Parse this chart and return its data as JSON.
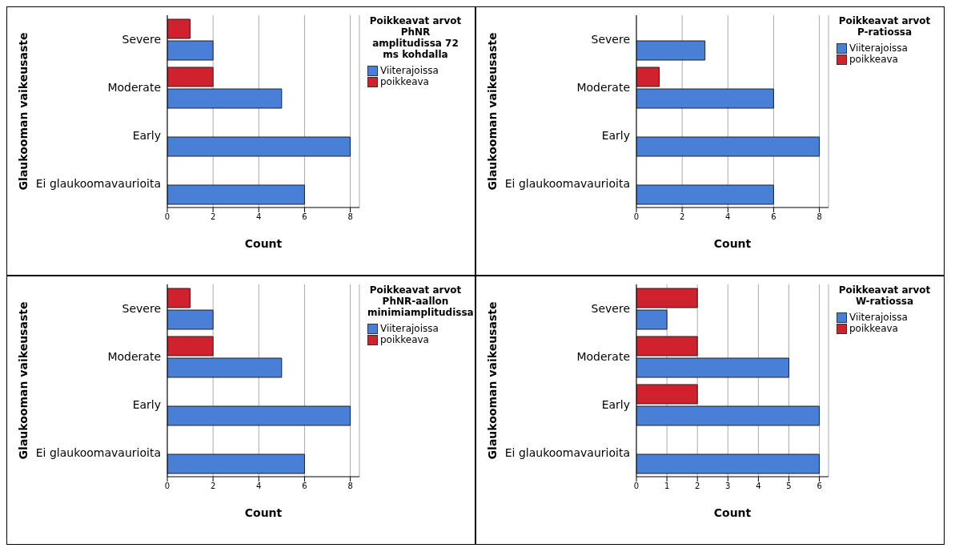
{
  "chart_data": [
    {
      "type": "bar",
      "orientation": "horizontal",
      "categories": [
        "Severe",
        "Moderate",
        "Early",
        "Ei glaukoomavaurioita"
      ],
      "series": [
        {
          "name": "Viiterajoissa",
          "color": "#4a7fd8",
          "values": [
            2,
            5,
            8,
            6
          ]
        },
        {
          "name": "poikkeava",
          "color": "#d0222e",
          "values": [
            1,
            2,
            0,
            0
          ]
        }
      ],
      "xlabel": "Count",
      "ylabel": "Glaukooman vaikeusaste",
      "legend_title": "Poikkeavat arvot PhNR amplitudissa 72 ms kohdalla",
      "xlim": [
        0,
        8.4
      ],
      "xticks": [
        0,
        2,
        4,
        6,
        8
      ],
      "grid": "x",
      "legend": "top right"
    },
    {
      "type": "bar",
      "orientation": "horizontal",
      "categories": [
        "Severe",
        "Moderate",
        "Early",
        "Ei glaukoomavaurioita"
      ],
      "series": [
        {
          "name": "Viiterajoissa",
          "color": "#4a7fd8",
          "values": [
            3,
            6,
            8,
            6
          ]
        },
        {
          "name": "poikkeava",
          "color": "#d0222e",
          "values": [
            0,
            1,
            0,
            0
          ]
        }
      ],
      "xlabel": "Count",
      "ylabel": "Glaukooman vaikeusaste",
      "legend_title": "Poikkeavat arvot P-ratiossa",
      "xlim": [
        0,
        8.4
      ],
      "xticks": [
        0,
        2,
        4,
        6,
        8
      ],
      "grid": "x",
      "legend": "top right"
    },
    {
      "type": "bar",
      "orientation": "horizontal",
      "categories": [
        "Severe",
        "Moderate",
        "Early",
        "Ei glaukoomavaurioita"
      ],
      "series": [
        {
          "name": "Viiterajoissa",
          "color": "#4a7fd8",
          "values": [
            2,
            5,
            8,
            6
          ]
        },
        {
          "name": "poikkeava",
          "color": "#d0222e",
          "values": [
            1,
            2,
            0,
            0
          ]
        }
      ],
      "xlabel": "Count",
      "ylabel": "Glaukooman vaikeusaste",
      "legend_title": "Poikkeavat arvot PhNR-aallon minimiamplitudissa",
      "xlim": [
        0,
        8.4
      ],
      "xticks": [
        0,
        2,
        4,
        6,
        8
      ],
      "grid": "x",
      "legend": "top right"
    },
    {
      "type": "bar",
      "orientation": "horizontal",
      "categories": [
        "Severe",
        "Moderate",
        "Early",
        "Ei glaukoomavaurioita"
      ],
      "series": [
        {
          "name": "Viiterajoissa",
          "color": "#4a7fd8",
          "values": [
            1,
            5,
            6,
            6
          ]
        },
        {
          "name": "poikkeava",
          "color": "#d0222e",
          "values": [
            2,
            2,
            2,
            0
          ]
        }
      ],
      "xlabel": "Count",
      "ylabel": "Glaukooman vaikeusaste",
      "legend_title": "Poikkeavat arvot W-ratiossa",
      "xlim": [
        0,
        6.3
      ],
      "xticks": [
        0,
        1,
        2,
        3,
        4,
        5,
        6
      ],
      "grid": "x",
      "legend": "top right"
    }
  ]
}
